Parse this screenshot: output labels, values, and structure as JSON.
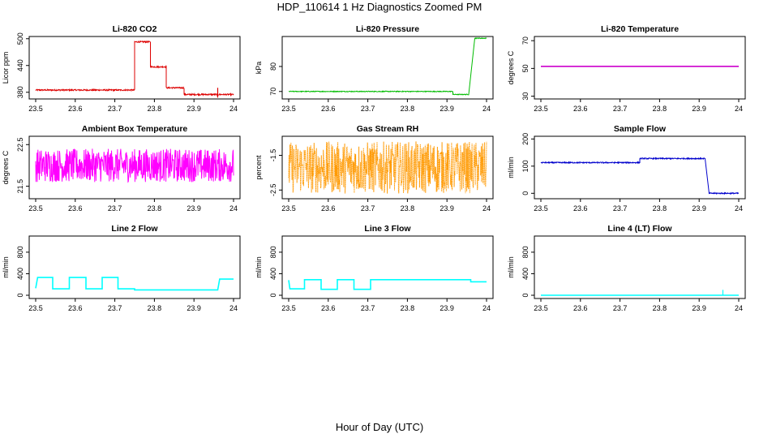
{
  "figure": {
    "title": "HDP_110614  1 Hz Diagnostics Zoomed PM",
    "xlabel": "Hour of Day (UTC)"
  },
  "chart_data": [
    {
      "type": "line",
      "title": "Li-820 CO2",
      "ylabel": "Licor ppm",
      "color": "#dd0000",
      "noise": 1.5,
      "xlim": [
        23.5,
        24.0
      ],
      "xticks": [
        23.5,
        23.6,
        23.7,
        23.8,
        23.9,
        24.0
      ],
      "ylim": [
        365,
        505
      ],
      "yticks": [
        380,
        440,
        500
      ],
      "segments": [
        {
          "x": [
            23.5,
            23.75
          ],
          "y": 385
        },
        {
          "x": [
            23.75,
            23.79
          ],
          "y": 493
        },
        {
          "x": [
            23.79,
            23.83
          ],
          "y": 437
        },
        {
          "x": [
            23.83,
            23.875
          ],
          "y": 390
        },
        {
          "x": [
            23.875,
            24.0
          ],
          "y": 375
        }
      ],
      "spikes": [
        {
          "x": 23.96,
          "y": [
            368,
            390
          ]
        }
      ]
    },
    {
      "type": "line",
      "title": "Li-820 Pressure",
      "ylabel": "kPa",
      "color": "#00bb00",
      "noise": 0.15,
      "xlim": [
        23.5,
        24.0
      ],
      "xticks": [
        23.5,
        23.6,
        23.7,
        23.8,
        23.9,
        24.0
      ],
      "ylim": [
        67,
        92
      ],
      "yticks": [
        70,
        80
      ],
      "segments": [
        {
          "x": [
            23.5,
            23.915
          ],
          "y": 70.0
        },
        {
          "x": [
            23.915,
            23.955
          ],
          "y": 68.8
        },
        {
          "x": [
            23.955,
            23.97
          ],
          "y": [
            68.8,
            91.0
          ]
        },
        {
          "x": [
            23.97,
            24.0
          ],
          "y": 91.3
        }
      ],
      "spikes": []
    },
    {
      "type": "line",
      "title": "Li-820 Temperature",
      "ylabel": "degrees C",
      "color": "#cc00cc",
      "noise": 0,
      "xlim": [
        23.5,
        24.0
      ],
      "xticks": [
        23.5,
        23.6,
        23.7,
        23.8,
        23.9,
        24.0
      ],
      "ylim": [
        28,
        73
      ],
      "yticks": [
        30,
        50,
        70
      ],
      "segments": [
        {
          "x": [
            23.5,
            24.0
          ],
          "y": 51.5
        }
      ],
      "spikes": []
    },
    {
      "type": "line",
      "title": "Ambient Box Temperature",
      "ylabel": "degrees C",
      "color": "#ff00ff",
      "noise": 0.4,
      "xlim": [
        23.5,
        24.0
      ],
      "xticks": [
        23.5,
        23.6,
        23.7,
        23.8,
        23.9,
        24.0
      ],
      "ylim": [
        21.2,
        22.7
      ],
      "yticks": [
        21.5,
        22.5
      ],
      "segments": [
        {
          "x": [
            23.5,
            24.0
          ],
          "y": 22.0
        }
      ],
      "spikes": []
    },
    {
      "type": "line",
      "title": "Gas Stream RH",
      "ylabel": "percent",
      "color": "#ff9900",
      "noise": 0.75,
      "marker": "dot",
      "xlim": [
        23.5,
        24.0
      ],
      "xticks": [
        23.5,
        23.6,
        23.7,
        23.8,
        23.9,
        24.0
      ],
      "ylim": [
        -2.75,
        -0.95
      ],
      "yticks": [
        -1.5,
        -2.5
      ],
      "segments": [
        {
          "x": [
            23.5,
            24.0
          ],
          "y": -1.85
        }
      ],
      "spikes": []
    },
    {
      "type": "line",
      "title": "Sample Flow",
      "ylabel": "ml/min",
      "color": "#0000cc",
      "noise": 2,
      "xlim": [
        23.5,
        24.0
      ],
      "xticks": [
        23.5,
        23.6,
        23.7,
        23.8,
        23.9,
        24.0
      ],
      "ylim": [
        -20,
        210
      ],
      "yticks": [
        0,
        100,
        200
      ],
      "segments": [
        {
          "x": [
            23.5,
            23.75
          ],
          "y": 113
        },
        {
          "x": [
            23.75,
            23.915
          ],
          "y": 128
        },
        {
          "x": [
            23.915,
            23.925
          ],
          "y": [
            128,
            2
          ]
        },
        {
          "x": [
            23.925,
            24.0
          ],
          "y": 0
        }
      ],
      "spikes": []
    },
    {
      "type": "line",
      "title": "Line 2 Flow",
      "ylabel": "ml/min",
      "color": "#00ffff",
      "noise": 0,
      "xlim": [
        23.5,
        24.0
      ],
      "xticks": [
        23.5,
        23.6,
        23.7,
        23.8,
        23.9,
        24.0
      ],
      "ylim": [
        -60,
        1100
      ],
      "yticks": [
        0,
        400,
        800
      ],
      "segments": [
        {
          "x": [
            23.5,
            23.505
          ],
          "y": [
            130,
            330
          ]
        },
        {
          "x": [
            23.505,
            23.543
          ],
          "y": 330
        },
        {
          "x": [
            23.543,
            23.585
          ],
          "y": 120
        },
        {
          "x": [
            23.585,
            23.627
          ],
          "y": 330
        },
        {
          "x": [
            23.627,
            23.668
          ],
          "y": 120
        },
        {
          "x": [
            23.668,
            23.708
          ],
          "y": 330
        },
        {
          "x": [
            23.708,
            23.75
          ],
          "y": 120
        },
        {
          "x": [
            23.75,
            23.96
          ],
          "y": 100
        },
        {
          "x": [
            23.96,
            23.965
          ],
          "y": [
            100,
            300
          ]
        },
        {
          "x": [
            23.965,
            24.0
          ],
          "y": 300
        }
      ],
      "spikes": []
    },
    {
      "type": "line",
      "title": "Line 3 Flow",
      "ylabel": "ml/min",
      "color": "#00ffff",
      "noise": 0,
      "xlim": [
        23.5,
        24.0
      ],
      "xticks": [
        23.5,
        23.6,
        23.7,
        23.8,
        23.9,
        24.0
      ],
      "ylim": [
        -60,
        1100
      ],
      "yticks": [
        0,
        400,
        800
      ],
      "segments": [
        {
          "x": [
            23.5,
            23.503
          ],
          "y": [
            280,
            120
          ]
        },
        {
          "x": [
            23.503,
            23.54
          ],
          "y": 120
        },
        {
          "x": [
            23.54,
            23.582
          ],
          "y": 290
        },
        {
          "x": [
            23.582,
            23.623
          ],
          "y": 110
        },
        {
          "x": [
            23.623,
            23.665
          ],
          "y": 290
        },
        {
          "x": [
            23.665,
            23.707
          ],
          "y": 110
        },
        {
          "x": [
            23.707,
            23.96
          ],
          "y": 290
        },
        {
          "x": [
            23.96,
            24.0
          ],
          "y": 250
        }
      ],
      "spikes": []
    },
    {
      "type": "line",
      "title": "Line 4 (LT) Flow",
      "ylabel": "ml/min",
      "color": "#00ffff",
      "noise": 0,
      "xlim": [
        23.5,
        24.0
      ],
      "xticks": [
        23.5,
        23.6,
        23.7,
        23.8,
        23.9,
        24.0
      ],
      "ylim": [
        -60,
        1100
      ],
      "yticks": [
        0,
        400,
        800
      ],
      "segments": [
        {
          "x": [
            23.5,
            24.0
          ],
          "y": 0
        }
      ],
      "spikes": [
        {
          "x": 23.96,
          "y": [
            0,
            100
          ]
        }
      ]
    }
  ]
}
